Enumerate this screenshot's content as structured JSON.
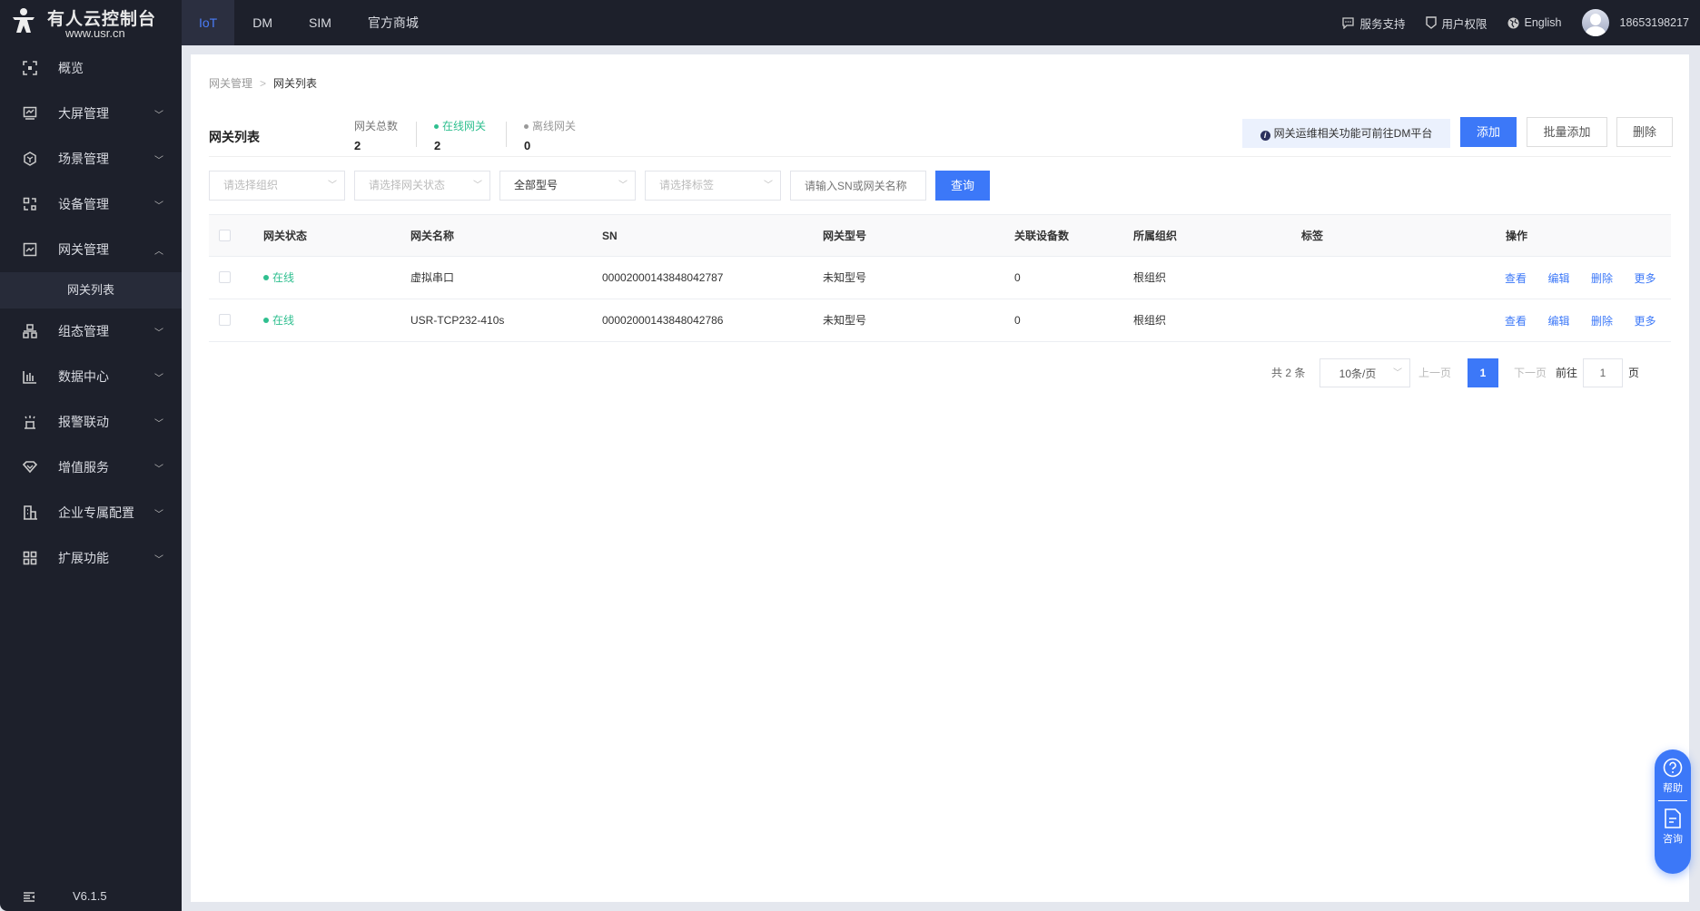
{
  "brand": {
    "title": "有人云控制台",
    "url": "www.usr.cn"
  },
  "nav_tabs": [
    {
      "label": "IoT",
      "active": true
    },
    {
      "label": "DM"
    },
    {
      "label": "SIM"
    },
    {
      "label": "官方商城"
    }
  ],
  "top_right": {
    "support": "服务支持",
    "permissions": "用户权限",
    "language": "English",
    "user": "18653198217"
  },
  "sidebar": {
    "items": [
      {
        "label": "概览",
        "icon": "overview-icon"
      },
      {
        "label": "大屏管理",
        "icon": "screen-icon"
      },
      {
        "label": "场景管理",
        "icon": "scene-icon"
      },
      {
        "label": "设备管理",
        "icon": "device-icon"
      },
      {
        "label": "网关管理",
        "icon": "gateway-icon",
        "expanded": true
      },
      {
        "label": "组态管理",
        "icon": "topology-icon"
      },
      {
        "label": "数据中心",
        "icon": "chart-icon"
      },
      {
        "label": "报警联动",
        "icon": "alarm-icon"
      },
      {
        "label": "增值服务",
        "icon": "diamond-icon"
      },
      {
        "label": "企业专属配置",
        "icon": "enterprise-icon"
      },
      {
        "label": "扩展功能",
        "icon": "grid-icon"
      }
    ],
    "sub_item": "网关列表",
    "version": "V6.1.5"
  },
  "breadcrumb": [
    "网关管理",
    "网关列表"
  ],
  "page_title": "网关列表",
  "stats": [
    {
      "label": "网关总数",
      "value": "2"
    },
    {
      "label": "在线网关",
      "value": "2",
      "color": "#2fbf8f"
    },
    {
      "label": "离线网关",
      "value": "0",
      "color": "#999999"
    }
  ],
  "info_tip": "网关运维相关功能可前往DM平台",
  "buttons": {
    "add": "添加",
    "batch_add": "批量添加",
    "delete": "删除",
    "query": "查询"
  },
  "filters": {
    "org": "请选择组织",
    "status": "请选择网关状态",
    "model": "全部型号",
    "tag": "请选择标签",
    "search_placeholder": "请输入SN或网关名称"
  },
  "table": {
    "headers": [
      "网关状态",
      "网关名称",
      "SN",
      "网关型号",
      "关联设备数",
      "所属组织",
      "标签",
      "操作"
    ],
    "rows": [
      {
        "status": "在线",
        "name": "虚拟串口",
        "sn": "00002000143848042787",
        "model": "未知型号",
        "devices": "0",
        "org": "根组织",
        "tag": ""
      },
      {
        "status": "在线",
        "name": "USR-TCP232-410s",
        "sn": "00002000143848042786",
        "model": "未知型号",
        "devices": "0",
        "org": "根组织",
        "tag": ""
      }
    ],
    "actions": [
      "查看",
      "编辑",
      "删除",
      "更多"
    ]
  },
  "pagination": {
    "total": "共 2 条",
    "page_size": "10条/页",
    "prev": "上一页",
    "current": "1",
    "next": "下一页",
    "goto": "前往",
    "goto_value": "1",
    "page_unit": "页"
  },
  "float_help": {
    "help": "帮助",
    "consult": "咨询"
  },
  "colors": {
    "primary": "#3c78f8",
    "sidebar": "#1d202b",
    "online": "#2fbf8f"
  }
}
